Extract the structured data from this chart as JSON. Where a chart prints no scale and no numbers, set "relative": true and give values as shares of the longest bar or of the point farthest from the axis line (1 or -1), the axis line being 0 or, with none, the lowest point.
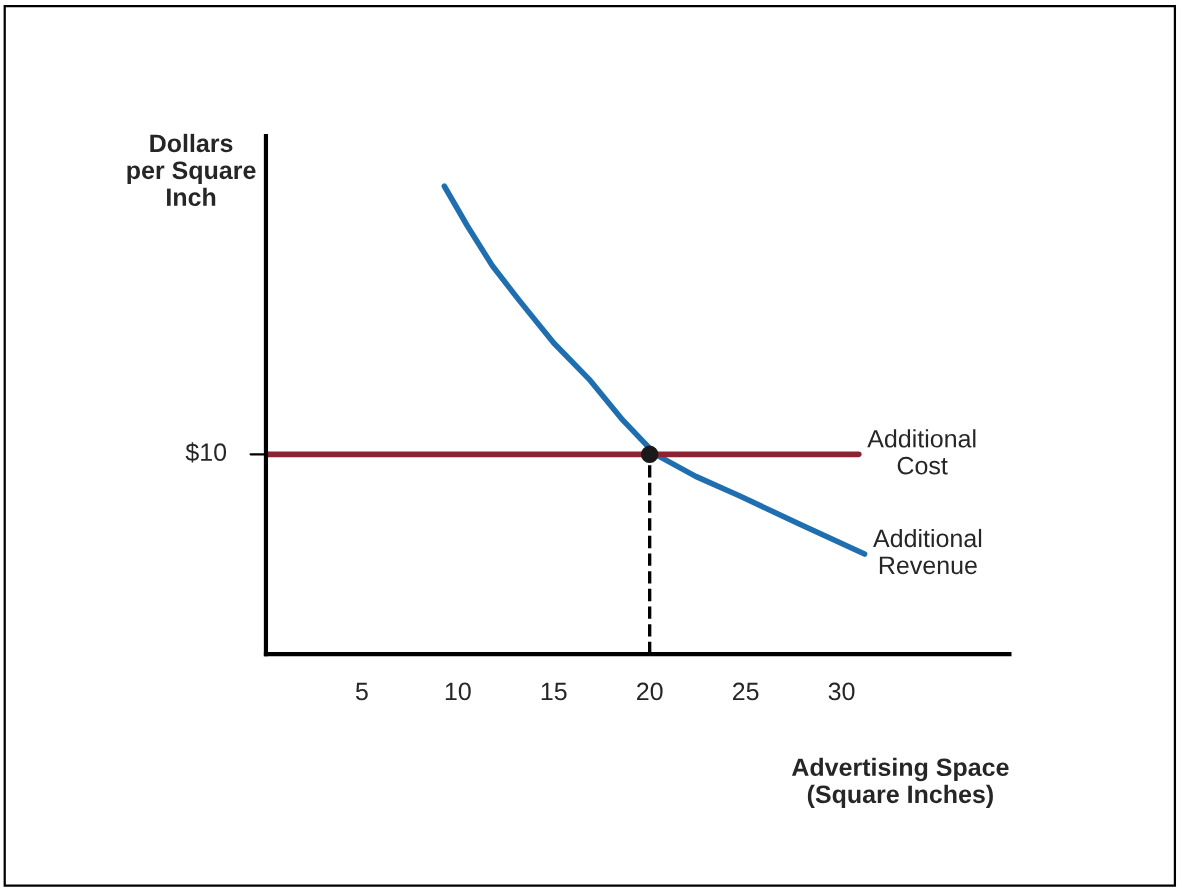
{
  "chart_data": {
    "type": "line",
    "relative": true,
    "xlabel": "Advertising Space\n(Square Inches)",
    "ylabel": "Dollars\nper Square\nInch",
    "xlim": [
      0,
      38.75
    ],
    "xticks": [
      5,
      10,
      15,
      20,
      25,
      30
    ],
    "grid": false,
    "legend": false,
    "marker": "none",
    "line_style": "solid",
    "series": [
      {
        "name": "Additional Revenue",
        "color": "#1f6fb0",
        "x": [
          9.3,
          10.5,
          11.8,
          13.2,
          15,
          16.9,
          18.6,
          20.3,
          22.4,
          24.7,
          27.8,
          31.2
        ],
        "values": [
          1,
          0.915,
          0.83,
          0.756,
          0.665,
          0.585,
          0.5,
          0.427,
          0.38,
          0.338,
          0.278,
          0.214
        ]
      },
      {
        "name": "Additional Cost",
        "color": "#8b2332",
        "x": [
          0,
          30.9
        ],
        "values": [
          0.427,
          0.427
        ]
      },
      {
        "type": "scatter",
        "marker": "circle",
        "color": "#1a1a1a",
        "x": [
          20
        ],
        "values": [
          0.427
        ]
      }
    ],
    "ref_lines": [
      {
        "axis": "x",
        "value": 20,
        "color": "#000000",
        "line_style": "dashed"
      }
    ],
    "annotations": [
      {
        "text": "$10",
        "x": 0,
        "y": 0.427
      }
    ]
  }
}
